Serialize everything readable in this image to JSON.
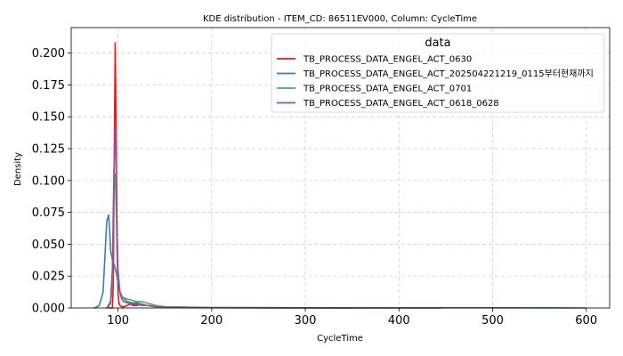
{
  "chart_data": {
    "type": "line",
    "title": "KDE distribution - ITEM_CD: 86511EV000, Column: CycleTime",
    "xlabel": "CycleTime",
    "ylabel": "Density",
    "xlim": [
      50,
      625
    ],
    "ylim": [
      0,
      0.22
    ],
    "x_ticks": [
      100,
      200,
      300,
      400,
      500,
      600
    ],
    "x_tick_labels": [
      "100",
      "200",
      "300",
      "400",
      "500",
      "600"
    ],
    "y_ticks": [
      0,
      0.025,
      0.05,
      0.075,
      0.1,
      0.125,
      0.15,
      0.175,
      0.2
    ],
    "y_tick_labels": [
      "0.000",
      "0.025",
      "0.050",
      "0.075",
      "0.100",
      "0.125",
      "0.150",
      "0.175",
      "0.200"
    ],
    "grid": true,
    "legend": {
      "title": "data",
      "placement": "top-right"
    },
    "series": [
      {
        "name": "TB_PROCESS_DATA_ENGEL_ACT_0630",
        "color": "#e41a1c",
        "x": [
          90,
          94,
          95,
          96,
          97,
          98,
          99,
          100,
          101,
          102,
          104,
          106,
          110,
          113,
          116,
          120,
          125,
          130,
          140,
          150,
          160,
          200,
          300,
          400,
          445
        ],
        "y": [
          0,
          0,
          0.02,
          0.12,
          0.208,
          0.14,
          0.045,
          0.012,
          0.004,
          0.002,
          0.001,
          0.0008,
          0.002,
          0.003,
          0.002,
          0.002,
          0.003,
          0.002,
          0.001,
          0.0005,
          0.0002,
          0.0001,
          5e-05,
          3e-05,
          0
        ]
      },
      {
        "name": "TB_PROCESS_DATA_ENGEL_ACT_202504221219_0115부터현재까지",
        "color": "#377eb8",
        "x": [
          75,
          80,
          84,
          86,
          88,
          90,
          91,
          92,
          94,
          96,
          98,
          100,
          102,
          105,
          110,
          115,
          120,
          125,
          130,
          140,
          150,
          200,
          300,
          400,
          500,
          600
        ],
        "y": [
          0,
          0.002,
          0.012,
          0.04,
          0.068,
          0.073,
          0.062,
          0.045,
          0.038,
          0.034,
          0.028,
          0.02,
          0.013,
          0.008,
          0.005,
          0.004,
          0.004,
          0.003,
          0.002,
          0.001,
          0.0005,
          0.0002,
          0.0001,
          0.0001,
          0.0001,
          0
        ]
      },
      {
        "name": "TB_PROCESS_DATA_ENGEL_ACT_0701",
        "color": "#4daf4a",
        "x": [
          88,
          92,
          94,
          95,
          96,
          97,
          98,
          99,
          100,
          102,
          104,
          106,
          110,
          115,
          120,
          125,
          130,
          135,
          140,
          150,
          200,
          300,
          400
        ],
        "y": [
          0,
          0.003,
          0.02,
          0.06,
          0.1,
          0.105,
          0.08,
          0.045,
          0.025,
          0.013,
          0.009,
          0.008,
          0.007,
          0.006,
          0.005,
          0.005,
          0.004,
          0.003,
          0.002,
          0.001,
          0.0003,
          0.0001,
          0
        ]
      },
      {
        "name": "TB_PROCESS_DATA_ENGEL_ACT_0618_0628",
        "color": "#984ea3",
        "x": [
          88,
          92,
          94,
          95,
          96,
          97,
          98,
          99,
          100,
          102,
          104,
          106,
          110,
          115,
          120,
          125,
          130,
          140,
          150,
          200,
          300,
          350
        ],
        "y": [
          0,
          0.005,
          0.03,
          0.08,
          0.12,
          0.142,
          0.11,
          0.06,
          0.03,
          0.012,
          0.007,
          0.005,
          0.004,
          0.003,
          0.003,
          0.002,
          0.002,
          0.001,
          0.0005,
          0.0002,
          0.0001,
          0
        ]
      }
    ]
  }
}
